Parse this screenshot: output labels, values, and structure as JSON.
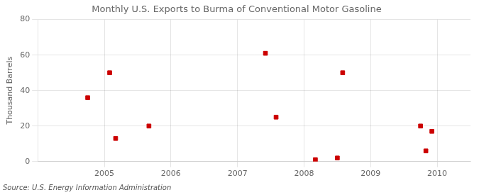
{
  "chart_data": {
    "type": "scatter",
    "title": "Monthly U.S. Exports to Burma of Conventional Motor Gasoline",
    "ylabel": "Thousand Barrels",
    "source": "Source: U.S. Energy Information Administration",
    "x": [
      2004.75,
      2005.08,
      2005.17,
      2005.67,
      2007.42,
      2007.58,
      2008.17,
      2008.5,
      2008.58,
      2009.75,
      2009.83,
      2009.92
    ],
    "values": [
      36,
      50,
      13,
      20,
      61,
      25,
      1,
      2,
      50,
      20,
      6,
      17
    ],
    "color": "#cc0000",
    "marker": "square",
    "xlim": [
      2004.0,
      2010.5
    ],
    "ylim": [
      0,
      80
    ],
    "xticks": [
      2005,
      2006,
      2007,
      2008,
      2009,
      2010
    ],
    "yticks": [
      0,
      20,
      40,
      60,
      80
    ],
    "grid": true
  }
}
